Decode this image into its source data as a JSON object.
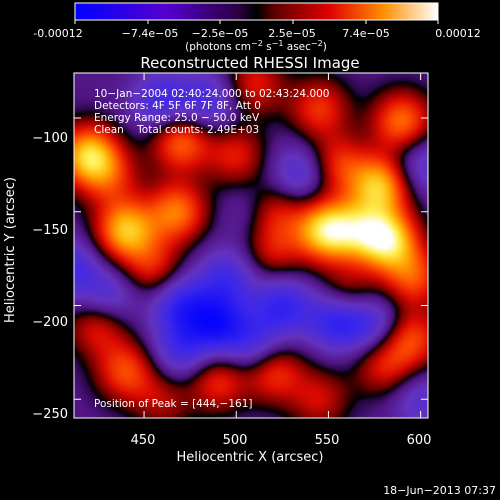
{
  "colorbar": {
    "tick_labels": [
      "-0.00012",
      "−7.4e−05",
      "−2.5e−05",
      "2.5e−05",
      "7.4e−05",
      "0.00012"
    ],
    "units_prefix": "(photons cm",
    "units_exp1": "−2",
    "units_mid": " s",
    "units_exp2": "−1",
    "units_mid2": " asec",
    "units_exp3": "−2",
    "units_suffix": ")",
    "range": [
      -0.00012,
      0.00012
    ]
  },
  "info_lines": [
    "10−Jan−2004 02:40:24.000 to 02:43:24.000",
    "Detectors: 4F 5F 6F 7F 8F, Att 0",
    "Energy Range: 25.0 − 50.0 keV",
    "Clean    Total counts: 2.49E+03"
  ],
  "peak_label": "Position of Peak = [444,−161]",
  "footer_date": "18−Jun−2013 07:37",
  "chart_data": {
    "type": "heatmap",
    "title": "Reconstructed RHESSI Image",
    "xlabel": "Heliocentric X (arcsec)",
    "ylabel": "Heliocentric Y (arcsec)",
    "xlim": [
      412,
      604
    ],
    "ylim": [
      -260,
      -76
    ],
    "x_ticks": [
      450,
      500,
      550,
      600
    ],
    "x_tick_labels": [
      "450",
      "500",
      "550",
      "600"
    ],
    "y_ticks": [
      -100,
      -150,
      -200,
      -250
    ],
    "y_tick_labels": [
      "−100",
      "−150",
      "−200",
      "−250"
    ],
    "blobs": [
      {
        "x": 420,
        "y": -120,
        "v": 0.75
      },
      {
        "x": 440,
        "y": -160,
        "v": 0.7
      },
      {
        "x": 432,
        "y": -132,
        "v": 0.3
      },
      {
        "x": 470,
        "y": -112,
        "v": 0.55
      },
      {
        "x": 468,
        "y": -150,
        "v": 0.55
      },
      {
        "x": 455,
        "y": -180,
        "v": 0.35
      },
      {
        "x": 510,
        "y": -82,
        "v": 0.35
      },
      {
        "x": 500,
        "y": -120,
        "v": 0.35
      },
      {
        "x": 520,
        "y": -150,
        "v": 0.4
      },
      {
        "x": 520,
        "y": -172,
        "v": 0.3
      },
      {
        "x": 545,
        "y": -95,
        "v": 0.4
      },
      {
        "x": 548,
        "y": -160,
        "v": 0.75
      },
      {
        "x": 565,
        "y": -160,
        "v": 0.45
      },
      {
        "x": 555,
        "y": -125,
        "v": 0.4
      },
      {
        "x": 578,
        "y": -136,
        "v": 0.7
      },
      {
        "x": 582,
        "y": -165,
        "v": 0.8
      },
      {
        "x": 590,
        "y": -102,
        "v": 0.55
      },
      {
        "x": 596,
        "y": -185,
        "v": 0.45
      },
      {
        "x": 595,
        "y": -218,
        "v": 0.45
      },
      {
        "x": 560,
        "y": -195,
        "v": 0.35
      },
      {
        "x": 425,
        "y": -210,
        "v": 0.4
      },
      {
        "x": 440,
        "y": -235,
        "v": 0.45
      },
      {
        "x": 520,
        "y": -235,
        "v": 0.45
      },
      {
        "x": 490,
        "y": -240,
        "v": 0.4
      },
      {
        "x": 580,
        "y": -232,
        "v": 0.35
      },
      {
        "x": 460,
        "y": -250,
        "v": 0.25
      },
      {
        "x": 545,
        "y": -250,
        "v": 0.3
      },
      {
        "x": 460,
        "y": -92,
        "v": -0.4
      },
      {
        "x": 485,
        "y": -92,
        "v": -0.35
      },
      {
        "x": 410,
        "y": -180,
        "v": -0.35
      },
      {
        "x": 470,
        "y": -200,
        "v": -0.45
      },
      {
        "x": 490,
        "y": -210,
        "v": -0.55
      },
      {
        "x": 495,
        "y": -185,
        "v": -0.35
      },
      {
        "x": 555,
        "y": -207,
        "v": -0.55
      },
      {
        "x": 525,
        "y": -200,
        "v": -0.45
      },
      {
        "x": 535,
        "y": -130,
        "v": -0.35
      },
      {
        "x": 510,
        "y": -150,
        "v": -0.2
      },
      {
        "x": 470,
        "y": -225,
        "v": -0.35
      },
      {
        "x": 510,
        "y": -222,
        "v": -0.35
      },
      {
        "x": 575,
        "y": -210,
        "v": -0.35
      },
      {
        "x": 600,
        "y": -125,
        "v": -0.3
      },
      {
        "x": 600,
        "y": -250,
        "v": -0.25
      },
      {
        "x": 430,
        "y": -196,
        "v": -0.35
      }
    ]
  }
}
